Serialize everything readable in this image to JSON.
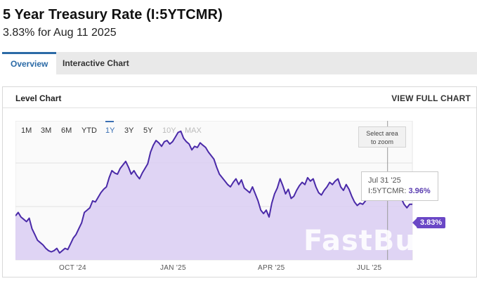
{
  "header": {
    "title": "5 Year Treasury Rate (I:5YTCMR)",
    "subtitle": "3.83% for Aug 11 2025"
  },
  "tabs": [
    {
      "label": "Overview",
      "active": true
    },
    {
      "label": "Interactive Chart",
      "active": false
    }
  ],
  "panel": {
    "title": "Level Chart",
    "view_full_label": "VIEW FULL CHART"
  },
  "ranges": [
    "1M",
    "3M",
    "6M",
    "YTD",
    "1Y",
    "3Y",
    "5Y",
    "10Y",
    "MAX"
  ],
  "active_range": "1Y",
  "zoom_hint": {
    "line1": "Select area",
    "line2": "to zoom"
  },
  "tooltip": {
    "date": "Jul 31 '25",
    "label": "I:5YTCMR:",
    "value": "3.96%"
  },
  "last_value_badge": "3.83%",
  "watermark": "FastBull",
  "colors": {
    "accent": "#2b6aa6",
    "series_line": "#4a2aa8",
    "series_fill": "#d9cdf2",
    "badge": "#6a47c6"
  },
  "chart_data": {
    "type": "area",
    "title": "Level Chart",
    "series_name": "I:5YTCMR",
    "x_tick_labels": [
      "OCT '24",
      "JAN '25",
      "APR '25",
      "JUL '25"
    ],
    "ylim": [
      3.35,
      4.55
    ],
    "values": [
      3.73,
      3.76,
      3.72,
      3.7,
      3.68,
      3.71,
      3.62,
      3.57,
      3.52,
      3.5,
      3.48,
      3.45,
      3.43,
      3.42,
      3.43,
      3.45,
      3.41,
      3.43,
      3.45,
      3.44,
      3.49,
      3.54,
      3.57,
      3.62,
      3.67,
      3.76,
      3.78,
      3.8,
      3.86,
      3.85,
      3.89,
      3.93,
      3.96,
      3.98,
      4.06,
      4.12,
      4.1,
      4.09,
      4.14,
      4.17,
      4.2,
      4.15,
      4.09,
      4.12,
      4.08,
      4.05,
      4.1,
      4.14,
      4.18,
      4.28,
      4.34,
      4.38,
      4.36,
      4.33,
      4.37,
      4.38,
      4.35,
      4.37,
      4.41,
      4.45,
      4.46,
      4.4,
      4.37,
      4.35,
      4.3,
      4.33,
      4.32,
      4.36,
      4.34,
      4.32,
      4.28,
      4.25,
      4.22,
      4.15,
      4.09,
      4.06,
      4.03,
      4.0,
      3.98,
      4.02,
      4.05,
      4.0,
      4.04,
      3.97,
      3.95,
      3.93,
      3.98,
      3.92,
      3.86,
      3.78,
      3.75,
      3.78,
      3.72,
      3.84,
      3.92,
      3.97,
      4.05,
      3.99,
      3.92,
      3.96,
      3.88,
      3.9,
      3.95,
      3.99,
      4.02,
      4.0,
      4.06,
      4.03,
      4.05,
      3.98,
      3.93,
      3.91,
      3.95,
      3.98,
      4.02,
      4.0,
      4.03,
      4.05,
      3.98,
      3.95,
      4.0,
      3.96,
      3.9,
      3.85,
      3.82,
      3.84,
      3.83,
      3.86,
      3.93,
      3.95,
      3.92,
      3.96,
      3.98,
      4.0,
      3.97,
      3.99,
      4.02,
      3.98,
      4.0,
      3.96,
      3.88,
      3.83,
      3.8,
      3.83,
      3.83
    ]
  }
}
